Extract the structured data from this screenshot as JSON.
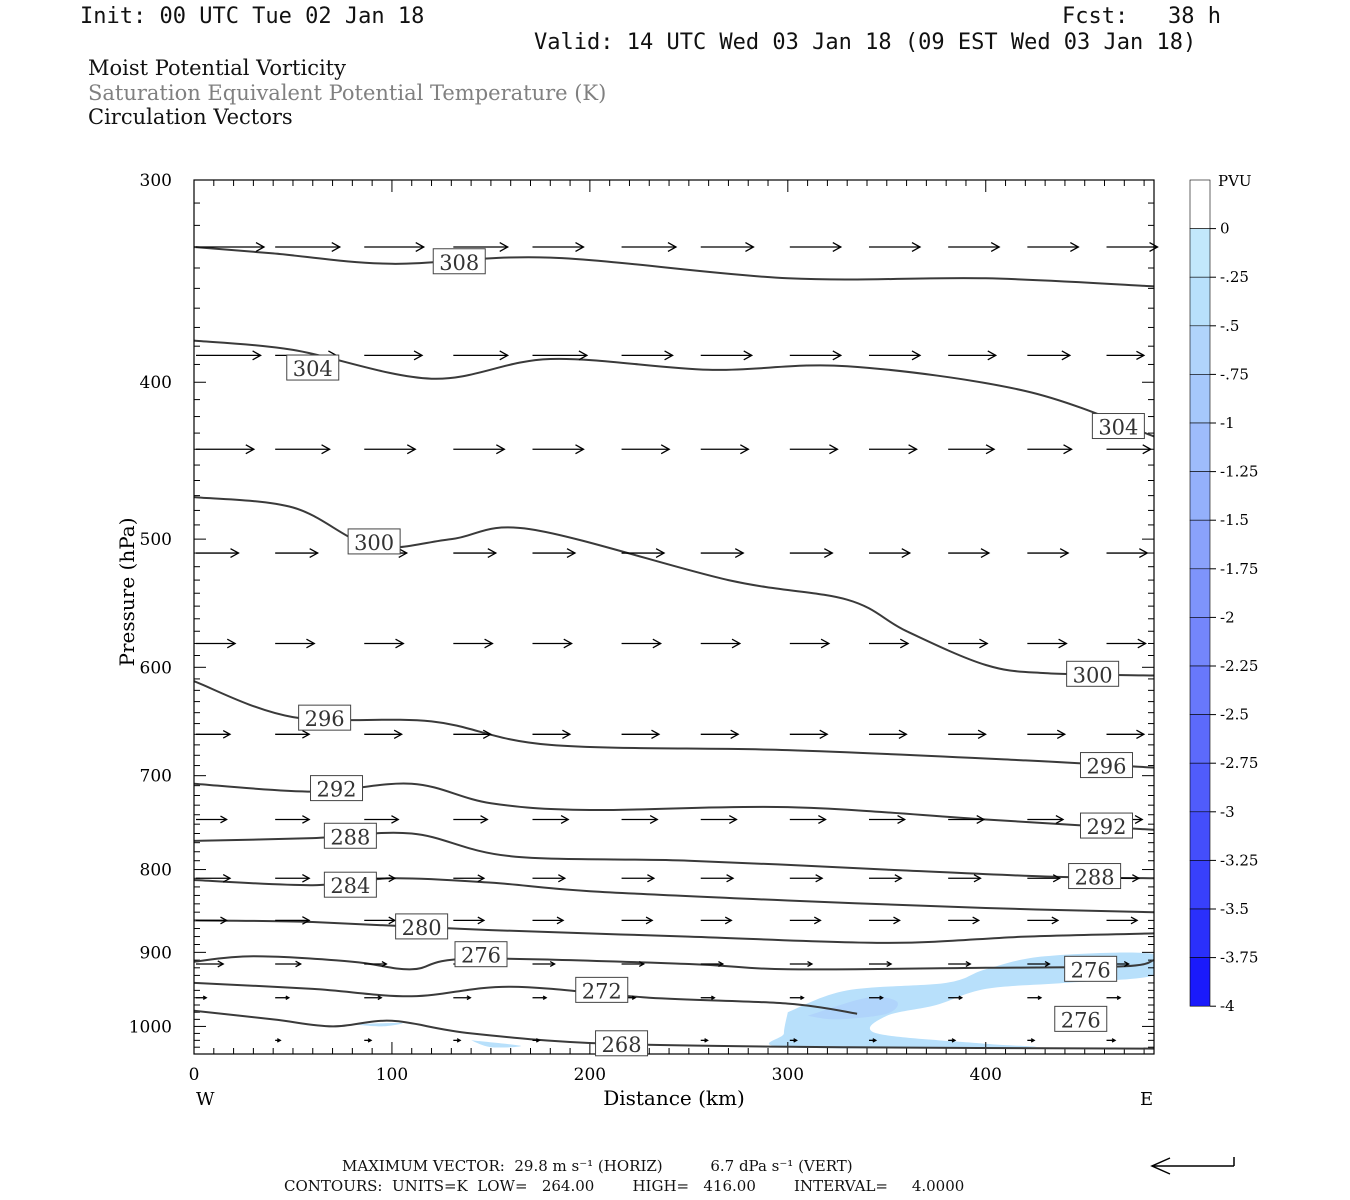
{
  "header": {
    "init": "Init: 00 UTC Tue 02 Jan 18",
    "fcst": "Fcst:   38 h",
    "valid": "Valid: 14 UTC Wed 03 Jan 18 (09 EST Wed 03 Jan 18)"
  },
  "legend_lines": [
    "Moist Potential Vorticity",
    "Saturation Equivalent Potential Temperature (K)",
    "Circulation Vectors"
  ],
  "chart_data": {
    "type": "cross-section",
    "xlabel": "Distance (km)",
    "ylabel": "Pressure (hPa)",
    "xlim": [
      0,
      485
    ],
    "ylim": [
      1040,
      300
    ],
    "y_scale": "log",
    "x_ticks": [
      0,
      100,
      200,
      300,
      400
    ],
    "y_ticks": [
      300,
      400,
      500,
      600,
      700,
      800,
      900,
      1000
    ],
    "x_end_labels": {
      "left": "W",
      "right": "E"
    },
    "colorbar": {
      "unit": "PVU",
      "labels": [
        "0",
        "-.25",
        "-.5",
        "-.75",
        "-1",
        "-1.25",
        "-1.5",
        "-1.75",
        "-2",
        "-2.25",
        "-2.5",
        "-2.75",
        "-3",
        "-3.25",
        "-3.5",
        "-3.75",
        "-4"
      ],
      "colors": [
        "#ffffff",
        "#c2e8fb",
        "#b8e0fb",
        "#b0d4fb",
        "#a6c8fb",
        "#9ebcfb",
        "#94b0fb",
        "#8aa2fb",
        "#7e94fb",
        "#7486fb",
        "#6878fb",
        "#5c6afb",
        "#505cfb",
        "#444efb",
        "#3840fb",
        "#2a30fb",
        "#1a1afb"
      ]
    },
    "contours": [
      {
        "label": "308",
        "points": [
          [
            0,
            330
          ],
          [
            40,
            333
          ],
          [
            100,
            338
          ],
          [
            180,
            335
          ],
          [
            300,
            345
          ],
          [
            400,
            345
          ],
          [
            485,
            349
          ]
        ],
        "labels_at": [
          [
            134,
            337
          ]
        ]
      },
      {
        "label": "304",
        "points": [
          [
            0,
            377
          ],
          [
            50,
            382
          ],
          [
            120,
            398
          ],
          [
            180,
            387
          ],
          [
            260,
            393
          ],
          [
            330,
            391
          ],
          [
            420,
            405
          ],
          [
            485,
            432
          ]
        ],
        "labels_at": [
          [
            60,
            392
          ],
          [
            467,
            426
          ]
        ]
      },
      {
        "label": "300",
        "points": [
          [
            0,
            471
          ],
          [
            50,
            478
          ],
          [
            90,
            505
          ],
          [
            130,
            500
          ],
          [
            170,
            493
          ],
          [
            270,
            530
          ],
          [
            330,
            545
          ],
          [
            360,
            570
          ],
          [
            400,
            598
          ],
          [
            430,
            605
          ],
          [
            485,
            607
          ]
        ],
        "labels_at": [
          [
            91,
            502
          ],
          [
            454,
            606
          ]
        ]
      },
      {
        "label": "296",
        "points": [
          [
            0,
            612
          ],
          [
            50,
            644
          ],
          [
            120,
            648
          ],
          [
            180,
            670
          ],
          [
            300,
            675
          ],
          [
            420,
            685
          ],
          [
            485,
            692
          ]
        ],
        "labels_at": [
          [
            66,
            645
          ],
          [
            461,
            690
          ]
        ]
      },
      {
        "label": "292",
        "points": [
          [
            0,
            708
          ],
          [
            60,
            716
          ],
          [
            110,
            708
          ],
          [
            150,
            728
          ],
          [
            200,
            735
          ],
          [
            300,
            732
          ],
          [
            400,
            745
          ],
          [
            485,
            756
          ]
        ],
        "labels_at": [
          [
            72,
            713
          ],
          [
            461,
            752
          ]
        ]
      },
      {
        "label": "288",
        "points": [
          [
            0,
            768
          ],
          [
            60,
            765
          ],
          [
            110,
            760
          ],
          [
            160,
            785
          ],
          [
            250,
            790
          ],
          [
            350,
            800
          ],
          [
            430,
            808
          ],
          [
            485,
            810
          ]
        ],
        "labels_at": [
          [
            79,
            763
          ],
          [
            455,
            808
          ]
        ]
      },
      {
        "label": "284",
        "points": [
          [
            0,
            812
          ],
          [
            60,
            818
          ],
          [
            100,
            810
          ],
          [
            150,
            815
          ],
          [
            200,
            825
          ],
          [
            300,
            836
          ],
          [
            400,
            845
          ],
          [
            485,
            850
          ]
        ],
        "labels_at": [
          [
            79,
            818
          ]
        ]
      },
      {
        "label": "280",
        "points": [
          [
            0,
            860
          ],
          [
            60,
            862
          ],
          [
            150,
            872
          ],
          [
            250,
            880
          ],
          [
            350,
            888
          ],
          [
            420,
            880
          ],
          [
            485,
            876
          ]
        ],
        "labels_at": [
          [
            115,
            868
          ]
        ]
      },
      {
        "label": "276",
        "points": [
          [
            0,
            912
          ],
          [
            30,
            905
          ],
          [
            80,
            912
          ],
          [
            110,
            922
          ],
          [
            140,
            908
          ],
          [
            250,
            915
          ],
          [
            300,
            922
          ],
          [
            400,
            920
          ],
          [
            470,
            918
          ],
          [
            485,
            910
          ]
        ],
        "labels_at": [
          [
            145,
            903
          ],
          [
            453,
            922
          ],
          [
            448,
            990
          ]
        ]
      },
      {
        "label": "272",
        "points": [
          [
            0,
            940
          ],
          [
            60,
            948
          ],
          [
            110,
            958
          ],
          [
            160,
            945
          ],
          [
            230,
            960
          ],
          [
            300,
            968
          ],
          [
            335,
            982
          ]
        ],
        "labels_at": [
          [
            206,
            950
          ]
        ]
      },
      {
        "label": "268",
        "points": [
          [
            0,
            978
          ],
          [
            40,
            990
          ],
          [
            70,
            1000
          ],
          [
            100,
            992
          ],
          [
            140,
            1010
          ],
          [
            210,
            1025
          ],
          [
            330,
            1030
          ],
          [
            485,
            1032
          ]
        ],
        "labels_at": [
          [
            216,
            1025
          ]
        ]
      }
    ],
    "pv_regions": [
      {
        "value": -0.25,
        "bounds": [
          [
            300,
            980
          ],
          [
            330,
            950
          ],
          [
            380,
            940
          ],
          [
            400,
            922
          ],
          [
            430,
            905
          ],
          [
            485,
            902
          ],
          [
            485,
            930
          ],
          [
            440,
            940
          ],
          [
            400,
            948
          ],
          [
            375,
            970
          ],
          [
            350,
            985
          ],
          [
            345,
            1010
          ],
          [
            400,
            1025
          ],
          [
            420,
            1030
          ],
          [
            300,
            1030
          ],
          [
            298,
            1010
          ]
        ]
      },
      {
        "value": -0.5,
        "bounds": [
          [
            310,
            985
          ],
          [
            340,
            960
          ],
          [
            355,
            965
          ],
          [
            350,
            982
          ],
          [
            325,
            990
          ]
        ]
      },
      {
        "value": -0.25,
        "bounds": [
          [
            80,
            997
          ],
          [
            105,
            995
          ],
          [
            95,
            1000
          ]
        ]
      },
      {
        "value": -0.25,
        "bounds": [
          [
            140,
            1020
          ],
          [
            165,
            1028
          ],
          [
            150,
            1030
          ]
        ]
      }
    ],
    "vector_rows": [
      {
        "p": 330,
        "arrows": [
          [
            0,
            4
          ],
          [
            40,
            3.8
          ],
          [
            85,
            3.5
          ],
          [
            130,
            3.2
          ],
          [
            170,
            3
          ],
          [
            215,
            3.2
          ],
          [
            255,
            3.1
          ],
          [
            300,
            3
          ],
          [
            340,
            3
          ],
          [
            380,
            3
          ],
          [
            420,
            3
          ],
          [
            460,
            3
          ]
        ]
      },
      {
        "p": 385,
        "arrows": [
          [
            0,
            3.8
          ],
          [
            40,
            3.6
          ],
          [
            85,
            3.4
          ],
          [
            130,
            3.2
          ],
          [
            170,
            3.2
          ],
          [
            215,
            3
          ],
          [
            255,
            3
          ],
          [
            300,
            3
          ],
          [
            340,
            3
          ],
          [
            380,
            2.8
          ],
          [
            420,
            2.5
          ],
          [
            460,
            2.2
          ]
        ]
      },
      {
        "p": 440,
        "arrows": [
          [
            0,
            3.4
          ],
          [
            40,
            3.2
          ],
          [
            85,
            3
          ],
          [
            130,
            3
          ],
          [
            170,
            3
          ],
          [
            215,
            2.8
          ],
          [
            255,
            2.8
          ],
          [
            300,
            2.8
          ],
          [
            340,
            2.8
          ],
          [
            380,
            2.7
          ],
          [
            420,
            2.6
          ],
          [
            460,
            2.6
          ]
        ]
      },
      {
        "p": 510,
        "arrows": [
          [
            0,
            2.5
          ],
          [
            40,
            2.5
          ],
          [
            85,
            2.5
          ],
          [
            130,
            2.5
          ],
          [
            170,
            2.5
          ],
          [
            215,
            2.5
          ],
          [
            255,
            2.5
          ],
          [
            300,
            2.5
          ],
          [
            340,
            2.4
          ],
          [
            380,
            2.4
          ],
          [
            420,
            2.4
          ],
          [
            460,
            2.4
          ]
        ]
      },
      {
        "p": 580,
        "arrows": [
          [
            0,
            2.3
          ],
          [
            40,
            2.3
          ],
          [
            85,
            2.3
          ],
          [
            130,
            2.3
          ],
          [
            170,
            2.3
          ],
          [
            215,
            2.3
          ],
          [
            255,
            2.3
          ],
          [
            300,
            2.3
          ],
          [
            340,
            2.3
          ],
          [
            380,
            2.3
          ],
          [
            420,
            2.3
          ],
          [
            460,
            2.3
          ]
        ]
      },
      {
        "p": 660,
        "arrows": [
          [
            0,
            2
          ],
          [
            40,
            2
          ],
          [
            85,
            2.2
          ],
          [
            130,
            2.2
          ],
          [
            170,
            2.2
          ],
          [
            215,
            2.2
          ],
          [
            255,
            2.2
          ],
          [
            300,
            2.2
          ],
          [
            340,
            2.2
          ],
          [
            380,
            2.2
          ],
          [
            420,
            2.2
          ],
          [
            460,
            2.2
          ]
        ]
      },
      {
        "p": 745,
        "arrows": [
          [
            0,
            1.8
          ],
          [
            40,
            2
          ],
          [
            85,
            2
          ],
          [
            130,
            2
          ],
          [
            170,
            2.1
          ],
          [
            215,
            2.1
          ],
          [
            255,
            2.1
          ],
          [
            300,
            2.1
          ],
          [
            340,
            2.1
          ],
          [
            380,
            2.1
          ],
          [
            420,
            2.1
          ],
          [
            460,
            2.1
          ]
        ]
      },
      {
        "p": 810,
        "arrows": [
          [
            0,
            2
          ],
          [
            40,
            2
          ],
          [
            85,
            1.8
          ],
          [
            130,
            1.8
          ],
          [
            170,
            1.9
          ],
          [
            215,
            1.9
          ],
          [
            255,
            1.9
          ],
          [
            300,
            1.9
          ],
          [
            340,
            1.9
          ],
          [
            380,
            1.9
          ],
          [
            420,
            1.9
          ],
          [
            460,
            1.9
          ]
        ]
      },
      {
        "p": 860,
        "arrows": [
          [
            0,
            1.8
          ],
          [
            40,
            2
          ],
          [
            85,
            1.8
          ],
          [
            130,
            1.8
          ],
          [
            170,
            1.8
          ],
          [
            215,
            1.8
          ],
          [
            255,
            1.8
          ],
          [
            300,
            1.8
          ],
          [
            340,
            1.8
          ],
          [
            380,
            1.8
          ],
          [
            420,
            1.8
          ],
          [
            460,
            1.8
          ]
        ]
      },
      {
        "p": 915,
        "arrows": [
          [
            0,
            1.6
          ],
          [
            40,
            1.5
          ],
          [
            85,
            1.3
          ],
          [
            130,
            1.3
          ],
          [
            170,
            1.3
          ],
          [
            215,
            1.3
          ],
          [
            255,
            1.3
          ],
          [
            300,
            1.3
          ],
          [
            340,
            1.3
          ],
          [
            380,
            1.3
          ],
          [
            420,
            1.3
          ],
          [
            460,
            1.3
          ]
        ]
      },
      {
        "p": 960,
        "arrows": [
          [
            0,
            0.6
          ],
          [
            40,
            0.8
          ],
          [
            85,
            1
          ],
          [
            130,
            1
          ],
          [
            170,
            0.8
          ],
          [
            215,
            0.8
          ],
          [
            255,
            0.8
          ],
          [
            300,
            0.8
          ],
          [
            340,
            0.8
          ],
          [
            380,
            0.8
          ],
          [
            420,
            0.8
          ],
          [
            460,
            0.8
          ]
        ]
      },
      {
        "p": 1020,
        "arrows": [
          [
            40,
            0.3
          ],
          [
            85,
            0.4
          ],
          [
            130,
            0.4
          ],
          [
            170,
            0.4
          ],
          [
            215,
            0.4
          ],
          [
            255,
            0.4
          ],
          [
            300,
            0.4
          ],
          [
            340,
            0.4
          ],
          [
            380,
            0.4
          ],
          [
            420,
            0.4
          ],
          [
            460,
            0.5
          ]
        ]
      }
    ]
  },
  "footer": {
    "max_vector_line": "MAXIMUM VECTOR:  29.8 m s⁻¹ (HORIZ)          6.7 dPa s⁻¹ (VERT)",
    "contours_line": "CONTOURS:  UNITS=K  LOW=   264.00        HIGH=   416.00        INTERVAL=     4.0000"
  }
}
